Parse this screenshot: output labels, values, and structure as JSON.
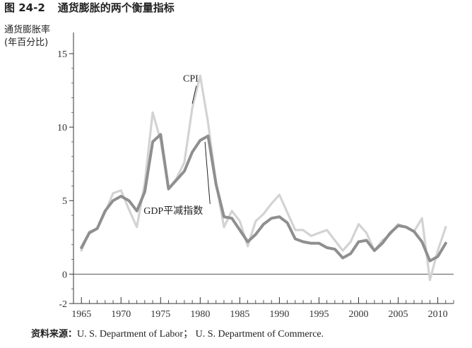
{
  "figure": {
    "number": "图 24-2",
    "title": "通货膨胀的两个衡量指标",
    "source_label": "资料来源：",
    "source_text": "U. S.  Department of Labor； U. S.  Department of Commerce."
  },
  "chart_data": {
    "type": "line",
    "title": "通货膨胀的两个衡量指标",
    "ylabel_lines": [
      "通货膨胀率",
      "(年百分比)"
    ],
    "xlabel": "",
    "xlim": [
      1964,
      2012
    ],
    "ylim": [
      -2,
      15
    ],
    "yticks": [
      -2,
      0,
      5,
      10,
      15
    ],
    "xticks": [
      1965,
      1970,
      1975,
      1980,
      1985,
      1990,
      1995,
      2000,
      2005,
      2010
    ],
    "grid": false,
    "series": [
      {
        "name": "CPI",
        "color": "#d3d3d3",
        "x": [
          1965,
          1966,
          1967,
          1968,
          1969,
          1970,
          1971,
          1972,
          1973,
          1974,
          1975,
          1976,
          1977,
          1978,
          1979,
          1980,
          1981,
          1982,
          1983,
          1984,
          1985,
          1986,
          1987,
          1988,
          1989,
          1990,
          1991,
          1992,
          1993,
          1994,
          1995,
          1996,
          1997,
          1998,
          1999,
          2000,
          2001,
          2002,
          2003,
          2004,
          2005,
          2006,
          2007,
          2008,
          2009,
          2010,
          2011
        ],
        "values": [
          1.6,
          2.9,
          3.1,
          4.2,
          5.5,
          5.7,
          4.4,
          3.2,
          6.2,
          11.0,
          9.1,
          5.8,
          6.5,
          7.6,
          11.3,
          13.5,
          10.3,
          6.2,
          3.2,
          4.3,
          3.6,
          1.9,
          3.6,
          4.1,
          4.8,
          5.4,
          4.2,
          3.0,
          3.0,
          2.6,
          2.8,
          3.0,
          2.3,
          1.6,
          2.2,
          3.4,
          2.8,
          1.6,
          2.3,
          2.7,
          3.4,
          3.2,
          2.9,
          3.8,
          -0.4,
          1.6,
          3.2
        ]
      },
      {
        "name": "GDP平减指数",
        "color": "#8f8f8f",
        "x": [
          1965,
          1966,
          1967,
          1968,
          1969,
          1970,
          1971,
          1972,
          1973,
          1974,
          1975,
          1976,
          1977,
          1978,
          1979,
          1980,
          1981,
          1982,
          1983,
          1984,
          1985,
          1986,
          1987,
          1988,
          1989,
          1990,
          1991,
          1992,
          1993,
          1994,
          1995,
          1996,
          1997,
          1998,
          1999,
          2000,
          2001,
          2002,
          2003,
          2004,
          2005,
          2006,
          2007,
          2008,
          2009,
          2010,
          2011
        ],
        "values": [
          1.8,
          2.8,
          3.1,
          4.3,
          5.0,
          5.3,
          5.0,
          4.3,
          5.6,
          9.0,
          9.5,
          5.8,
          6.4,
          7.0,
          8.3,
          9.1,
          9.4,
          6.1,
          3.9,
          3.8,
          3.0,
          2.2,
          2.7,
          3.4,
          3.8,
          3.9,
          3.5,
          2.4,
          2.2,
          2.1,
          2.1,
          1.8,
          1.7,
          1.1,
          1.4,
          2.2,
          2.3,
          1.6,
          2.1,
          2.8,
          3.3,
          3.2,
          2.9,
          2.2,
          0.9,
          1.2,
          2.1
        ]
      }
    ],
    "annotations": [
      {
        "text": "CPI",
        "series": "CPI",
        "label_x": 1978.8,
        "label_y": 13.1,
        "point_x": 1979.0,
        "point_y": 11.6
      },
      {
        "text": "GDP平减指数",
        "series": "GDP平减指数",
        "label_x": 1976.6,
        "label_y": 4.1,
        "point_x": 1980.6,
        "point_y": 9.0
      }
    ]
  }
}
